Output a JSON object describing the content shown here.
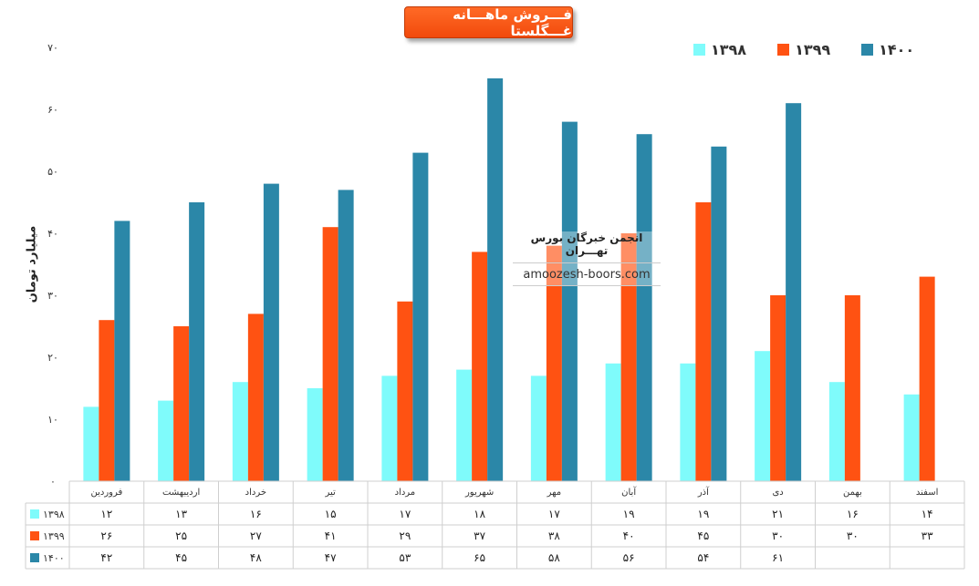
{
  "chart_data": {
    "type": "bar",
    "title": "فـــروش ماهـــانه غـــگلستا",
    "ylabel": "میلیارد تومان",
    "ylim": [
      0,
      70
    ],
    "yticks": [
      "۰",
      "۱۰",
      "۲۰",
      "۳۰",
      "۴۰",
      "۵۰",
      "۶۰",
      "۷۰"
    ],
    "grid": false,
    "legend_position": "top-right",
    "categories": [
      "فروردین",
      "اردیبهشت",
      "خرداد",
      "تیر",
      "مرداد",
      "شهریور",
      "مهر",
      "آبان",
      "آذر",
      "دی",
      "بهمن",
      "اسفند"
    ],
    "series": [
      {
        "name": "۱۳۹۸",
        "color": "#7ffbfb",
        "values": [
          12,
          13,
          16,
          15,
          17,
          18,
          17,
          19,
          19,
          21,
          16,
          14
        ],
        "labels": [
          "۱۲",
          "۱۳",
          "۱۶",
          "۱۵",
          "۱۷",
          "۱۸",
          "۱۷",
          "۱۹",
          "۱۹",
          "۲۱",
          "۱۶",
          "۱۴"
        ]
      },
      {
        "name": "۱۳۹۹",
        "color": "#ff5212",
        "values": [
          26,
          25,
          27,
          41,
          29,
          37,
          38,
          40,
          45,
          30,
          30,
          33
        ],
        "labels": [
          "۲۶",
          "۲۵",
          "۲۷",
          "۴۱",
          "۲۹",
          "۳۷",
          "۳۸",
          "۴۰",
          "۴۵",
          "۳۰",
          "۳۰",
          "۳۳"
        ]
      },
      {
        "name": "۱۴۰۰",
        "color": "#2b87a8",
        "values": [
          42,
          45,
          48,
          47,
          53,
          65,
          58,
          56,
          54,
          61,
          null,
          null
        ],
        "labels": [
          "۴۲",
          "۴۵",
          "۴۸",
          "۴۷",
          "۵۳",
          "۶۵",
          "۵۸",
          "۵۶",
          "۵۴",
          "۶۱",
          "",
          ""
        ]
      }
    ]
  },
  "watermark": {
    "title": "انجمن خبرگان بورس تهـــران",
    "url": "amoozesh-boors.com"
  }
}
